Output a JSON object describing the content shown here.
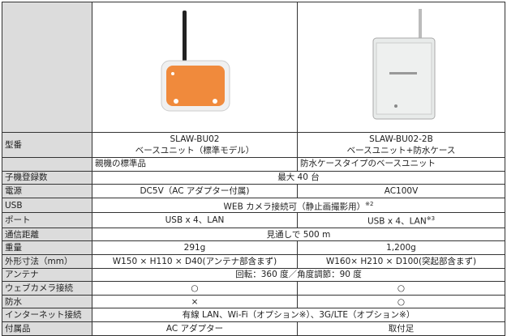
{
  "table": {
    "model": {
      "label": "型番",
      "cells": [
        {
          "lines": [
            "SLAW-BU02",
            "ベースユニット（標準モデル）"
          ]
        },
        {
          "lines": [
            "SLAW-BU02-2B",
            "ベースユニット+防水ケース"
          ]
        }
      ]
    },
    "description": [
      "親機の標準品",
      "防水ケースタイプのベースユニット"
    ],
    "rows": [
      {
        "label": "子機登録数",
        "cells": [
          {
            "text": "最大 40 台"
          }
        ]
      },
      {
        "label": "電源",
        "cells": [
          {
            "text": "DC5V（AC アダプター付属)"
          },
          {
            "text": "AC100V"
          }
        ]
      },
      {
        "label": "USB",
        "cells": [
          {
            "text": "WEB カメラ接続可（静止画撮影用）",
            "note": "※2"
          }
        ]
      },
      {
        "label": "ポート",
        "cells": [
          {
            "text": "USB x 4、LAN"
          },
          {
            "text": "USB x 4、LAN",
            "note": "※3"
          }
        ]
      },
      {
        "label": "通信距離",
        "cells": [
          {
            "text": "見通しで 500 m"
          }
        ]
      },
      {
        "label": "重量",
        "cells": [
          {
            "text": "291g"
          },
          {
            "text": "1,200g"
          }
        ]
      },
      {
        "label": "外形寸法（mm）",
        "cells": [
          {
            "text": "W150 × H110 × D40(アンテナ部含まず)"
          },
          {
            "text": "W160× H210 × D100(突起部含まず)"
          }
        ]
      },
      {
        "label": "アンテナ",
        "cells": [
          {
            "text": "回転：360 度／角度調節：90 度"
          }
        ]
      },
      {
        "label": "ウェブカメラ接続",
        "cells": [
          {
            "text": "○"
          },
          {
            "text": "○"
          }
        ]
      },
      {
        "label": "防水",
        "cells": [
          {
            "text": "×"
          },
          {
            "text": "○"
          }
        ]
      },
      {
        "label": "インターネット接続",
        "cells": [
          {
            "text": "有線 LAN、Wi-Fi（オプション※）、3G/LTE（オプション※）"
          }
        ]
      },
      {
        "label": "付属品",
        "cells": [
          {
            "text": "AC アダプター"
          },
          {
            "text": "取付足"
          }
        ]
      }
    ]
  }
}
